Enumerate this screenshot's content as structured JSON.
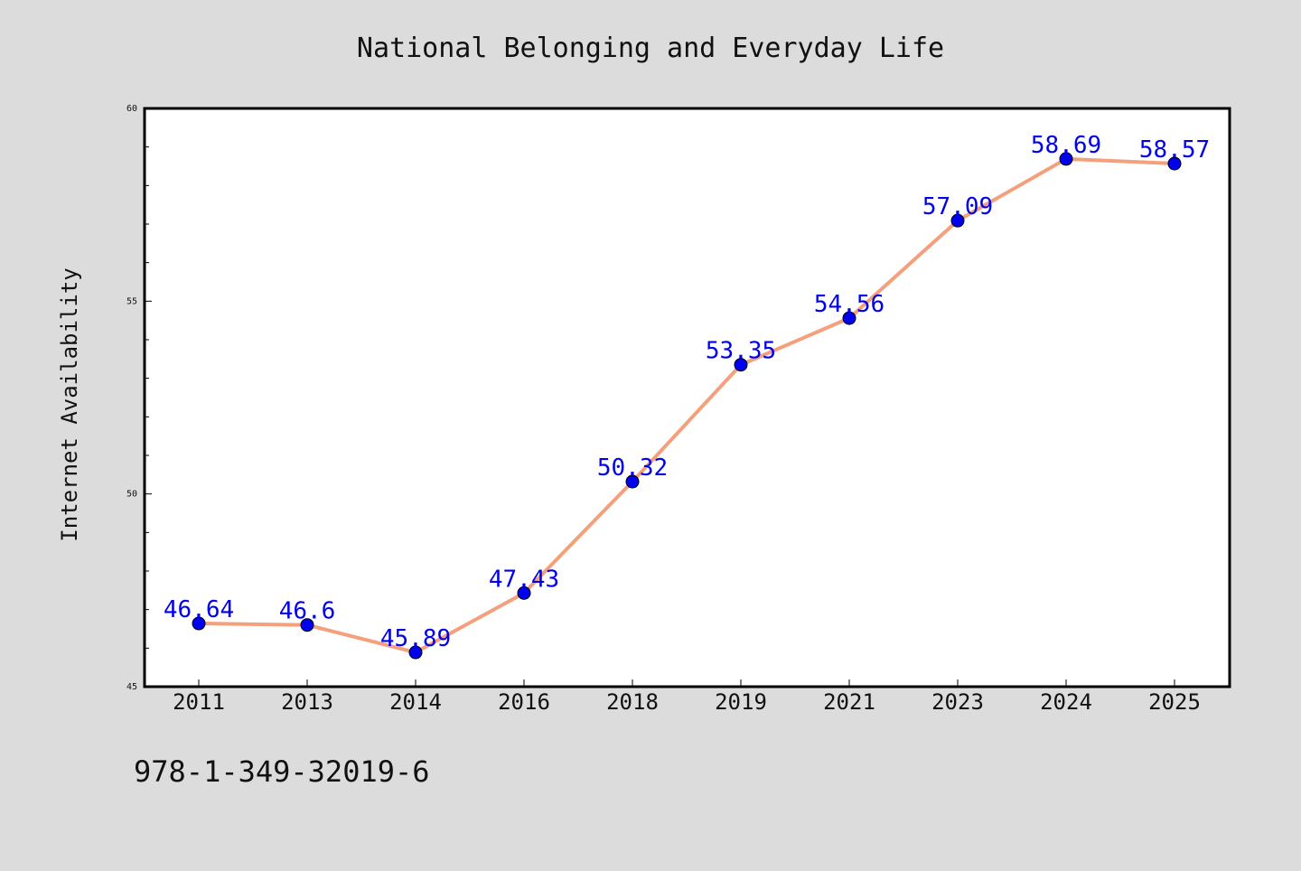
{
  "footer_text": "978-1-349-32019-6",
  "chart_data": {
    "type": "line",
    "title": "National Belonging and Everyday Life",
    "xlabel": "",
    "ylabel": "Internet Availability",
    "categories": [
      "2011",
      "2013",
      "2014",
      "2016",
      "2018",
      "2019",
      "2021",
      "2023",
      "2024",
      "2025"
    ],
    "series": [
      {
        "values": [
          46.64,
          46.6,
          45.89,
          47.43,
          50.32,
          53.35,
          54.56,
          57.09,
          58.69,
          58.57
        ],
        "labels": [
          "46.64",
          "46.6",
          "45.89",
          "47.43",
          "50.32",
          "53.35",
          "54.56",
          "57.09",
          "58.69",
          "58.57"
        ],
        "line_color": "#f4a07c",
        "marker_color": "#0000ee"
      }
    ],
    "ylim": [
      45,
      60
    ],
    "yticks": [
      "45",
      "50",
      "55",
      "60"
    ],
    "grid": false,
    "legend": "none"
  }
}
